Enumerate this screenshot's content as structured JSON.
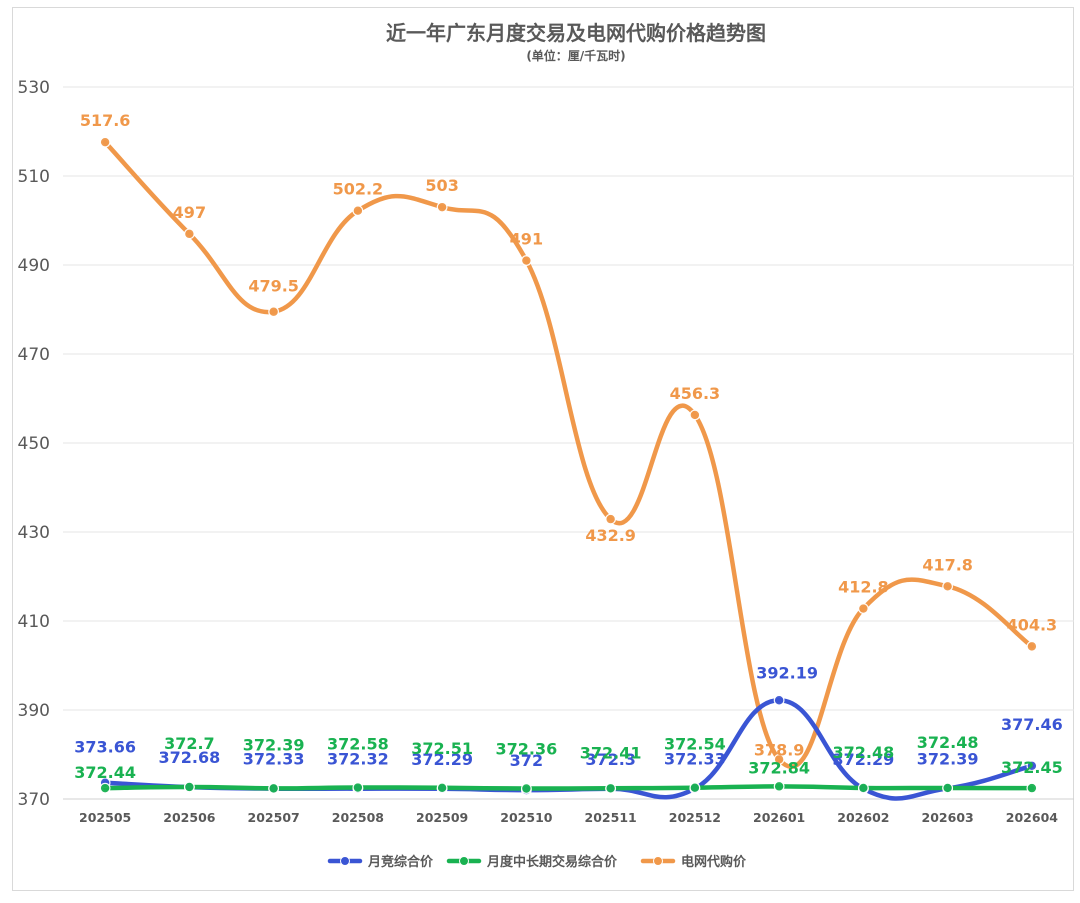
{
  "chart_data": {
    "type": "line",
    "title": "近一年广东月度交易及电网代购价格趋势图",
    "subtitle": "(单位：厘/千瓦时)",
    "categories": [
      "202505",
      "202506",
      "202507",
      "202508",
      "202509",
      "202510",
      "202511",
      "202512",
      "202601",
      "202602",
      "202603",
      "202604"
    ],
    "ylim": [
      370,
      530
    ],
    "yticks": [
      370,
      390,
      410,
      430,
      450,
      470,
      490,
      510,
      530
    ],
    "grid": true,
    "legend_position": "bottom",
    "series": [
      {
        "name": "月竞综合价",
        "color": "#3a55d4",
        "values": [
          373.66,
          372.68,
          372.33,
          372.32,
          372.29,
          372,
          372.3,
          372.33,
          392.19,
          372.29,
          372.39,
          377.46
        ],
        "labels": [
          "373.66",
          "372.68",
          "372.33",
          "372.32",
          "372.29",
          "372",
          "372.3",
          "372.33",
          "392.19",
          "372.29",
          "372.39",
          "377.46"
        ]
      },
      {
        "name": "月度中长期交易综合价",
        "color": "#19b251",
        "values": [
          372.44,
          372.7,
          372.39,
          372.58,
          372.51,
          372.36,
          372.41,
          372.54,
          372.84,
          372.48,
          372.48,
          372.45
        ],
        "labels": [
          "372.44",
          "372.7",
          "372.39",
          "372.58",
          "372.51",
          "372.36",
          "372.41",
          "372.54",
          "372.84",
          "372.48",
          "372.48",
          "372.45"
        ]
      },
      {
        "name": "电网代购价",
        "color": "#f0984a",
        "values": [
          517.6,
          497,
          479.5,
          502.2,
          503,
          491,
          432.9,
          456.3,
          378.9,
          412.8,
          417.8,
          404.3
        ],
        "labels": [
          "517.6",
          "497",
          "479.5",
          "502.2",
          "503",
          "491",
          "432.9",
          "456.3",
          "378.9",
          "412.8",
          "417.8",
          "404.3"
        ]
      }
    ]
  }
}
